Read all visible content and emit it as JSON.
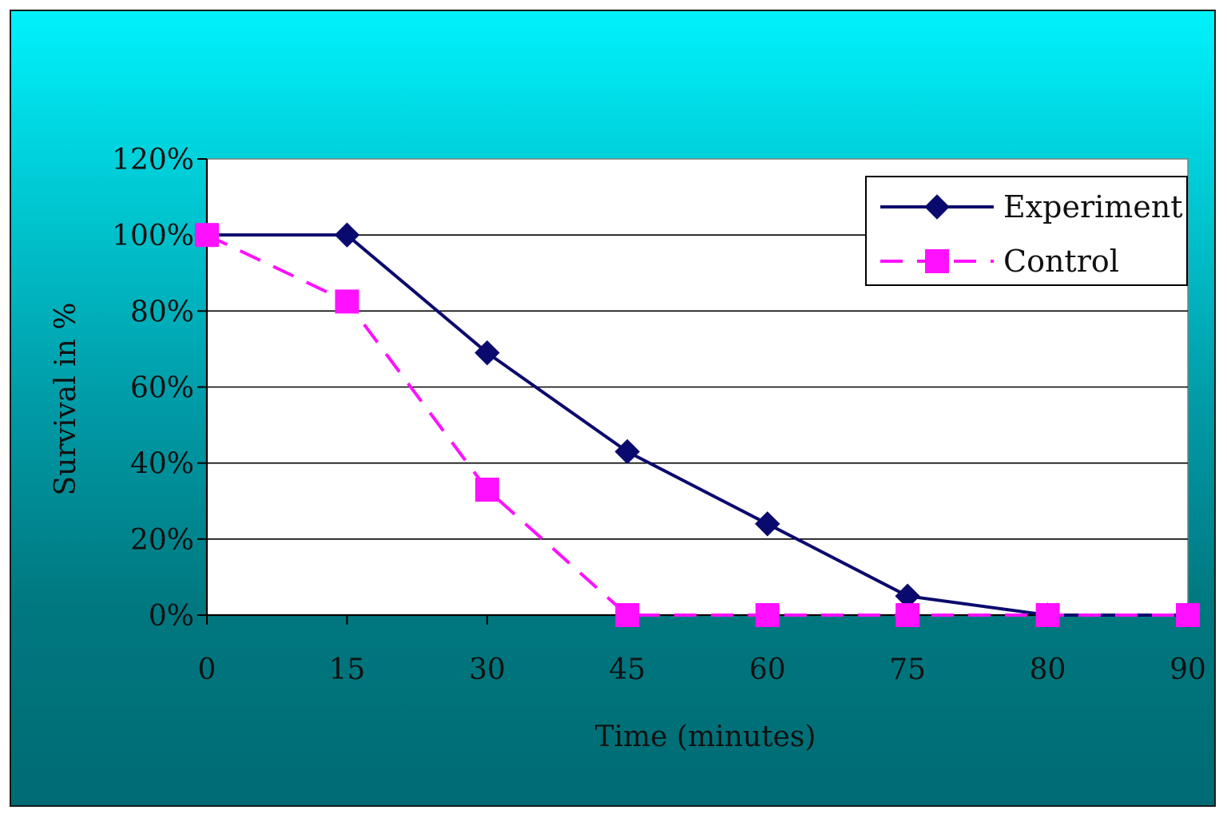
{
  "chart_data": {
    "type": "line",
    "categories": [
      "0",
      "15",
      "30",
      "45",
      "60",
      "75",
      "80",
      "90"
    ],
    "series": [
      {
        "name": "Experiment",
        "values": [
          1.0,
          1.0,
          0.69,
          0.43,
          0.24,
          0.05,
          0.0,
          0.0
        ],
        "color": "#0a0a6e",
        "marker": "diamond",
        "line": "solid"
      },
      {
        "name": "Control",
        "values": [
          1.0,
          0.825,
          0.33,
          0.0,
          0.0,
          0.0,
          0.0,
          0.0
        ],
        "color": "#ff10ff",
        "marker": "square",
        "line": "dashed"
      }
    ],
    "title": "",
    "xlabel": "Time (minutes)",
    "ylabel": "Survival in %",
    "ylim": [
      0,
      1.2
    ],
    "yticks": [
      "0%",
      "20%",
      "40%",
      "60%",
      "80%",
      "100%",
      "120%"
    ],
    "grid": true,
    "legend_position": "top-right",
    "plot_background": "#ffffff",
    "frame_background": "#00a0aa"
  }
}
